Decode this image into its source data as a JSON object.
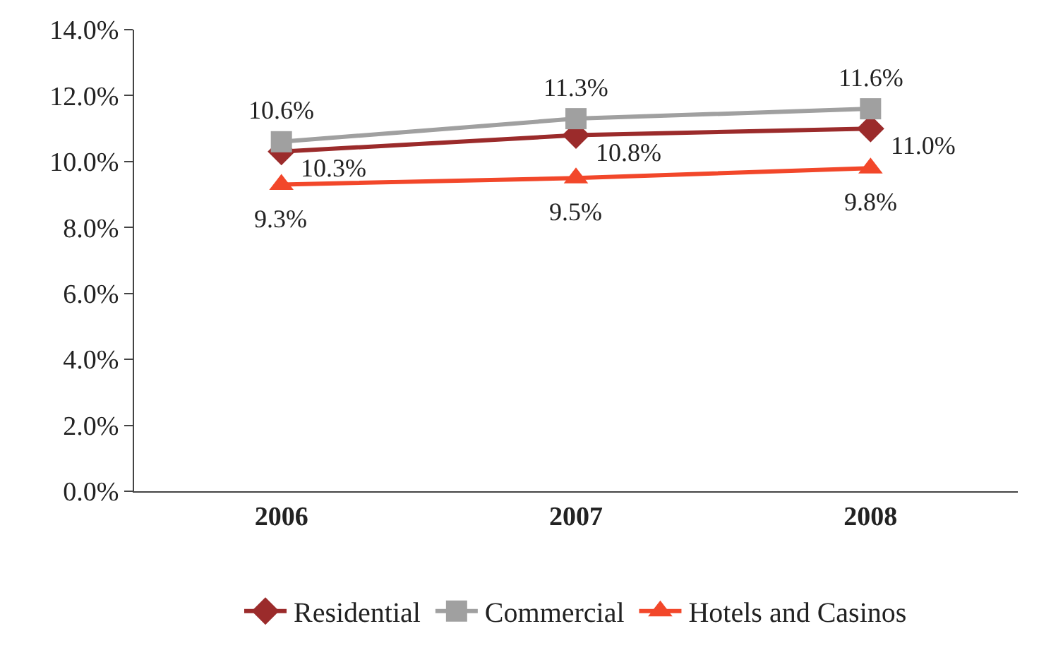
{
  "chart_data": {
    "type": "line",
    "categories": [
      "2006",
      "2007",
      "2008"
    ],
    "series": [
      {
        "name": "Residential",
        "color": "#9b2b2b",
        "marker": "diamond",
        "values": [
          10.3,
          10.8,
          11.0
        ],
        "value_labels": [
          "10.3%",
          "10.8%",
          "11.0%"
        ]
      },
      {
        "name": "Commercial",
        "color": "#a0a0a0",
        "marker": "square",
        "values": [
          10.6,
          11.3,
          11.6
        ],
        "value_labels": [
          "10.6%",
          "11.3%",
          "11.6%"
        ]
      },
      {
        "name": "Hotels and Casinos",
        "color": "#f2472a",
        "marker": "triangle",
        "values": [
          9.3,
          9.5,
          9.8
        ],
        "value_labels": [
          "9.3%",
          "9.5%",
          "9.8%"
        ]
      }
    ],
    "ylim": [
      0,
      14
    ],
    "yticks": [
      {
        "value": 0,
        "label": "0.0%"
      },
      {
        "value": 2,
        "label": "2.0%"
      },
      {
        "value": 4,
        "label": "4.0%"
      },
      {
        "value": 6,
        "label": "6.0%"
      },
      {
        "value": 8,
        "label": "8.0%"
      },
      {
        "value": 10,
        "label": "10.0%"
      },
      {
        "value": 12,
        "label": "12.0%"
      },
      {
        "value": 14,
        "label": "14.0%"
      }
    ],
    "legend": "bottom",
    "line_style": "solid"
  }
}
